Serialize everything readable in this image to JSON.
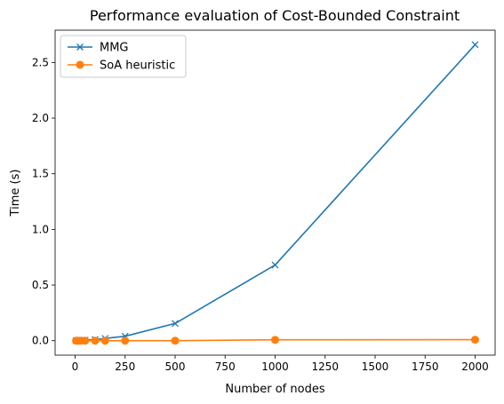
{
  "chart_data": {
    "type": "line",
    "title": "Performance evaluation of Cost-Bounded Constraint",
    "xlabel": "Number of nodes",
    "ylabel": "Time (s)",
    "xlim": [
      -100,
      2100
    ],
    "ylim": [
      -0.13,
      2.79
    ],
    "xticks": [
      0,
      250,
      500,
      750,
      1000,
      1250,
      1500,
      1750,
      2000
    ],
    "yticks": [
      0.0,
      0.5,
      1.0,
      1.5,
      2.0,
      2.5
    ],
    "xtick_labels": [
      "0",
      "250",
      "500",
      "750",
      "1000",
      "1250",
      "1500",
      "1750",
      "2000"
    ],
    "ytick_labels": [
      "0.0",
      "0.5",
      "1.0",
      "1.5",
      "2.0",
      "2.5"
    ],
    "grid": false,
    "legend": "top-left",
    "series": [
      {
        "name": "MMG",
        "color": "#1f77b4",
        "marker": "x",
        "x": [
          5,
          10,
          20,
          30,
          50,
          100,
          150,
          250,
          500,
          1000,
          2000
        ],
        "y": [
          0.0,
          0.001,
          0.002,
          0.003,
          0.005,
          0.01,
          0.02,
          0.04,
          0.155,
          0.68,
          2.66
        ]
      },
      {
        "name": "SoA heuristic",
        "color": "#ff7f0e",
        "marker": "o",
        "x": [
          5,
          10,
          20,
          30,
          50,
          100,
          150,
          250,
          500,
          1000,
          2000
        ],
        "y": [
          0.0,
          0.0,
          0.0,
          0.0,
          0.0,
          0.0,
          0.0,
          0.0,
          0.0,
          0.008,
          0.009
        ]
      }
    ]
  }
}
